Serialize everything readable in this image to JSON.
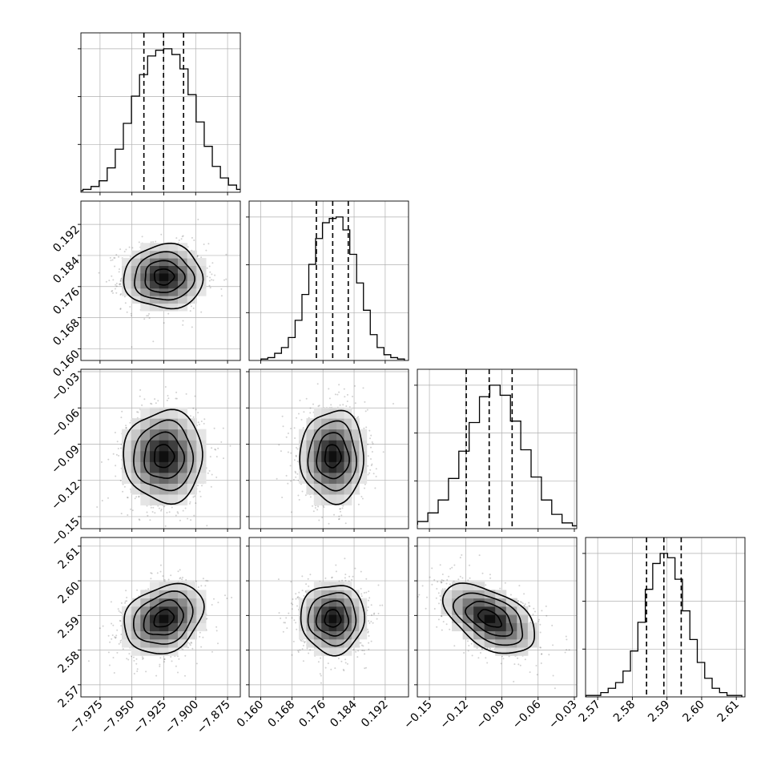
{
  "chart_data": {
    "type": "corner",
    "grid": true,
    "parameters": [
      {
        "range": [
          -7.99,
          -7.865
        ],
        "ticks": [
          "-7.975",
          "-7.950",
          "-7.925",
          "-7.900",
          "-7.875"
        ],
        "tick_values": [
          -7.975,
          -7.95,
          -7.925,
          -7.9,
          -7.875
        ],
        "quantiles": [
          -7.9406,
          -7.9252,
          -7.9095
        ],
        "mean": -7.925,
        "std": 0.0155,
        "hist_counts": [
          1,
          2,
          4,
          8,
          17,
          30,
          48,
          67,
          82,
          95,
          99,
          100,
          96,
          86,
          68,
          49,
          32,
          18,
          10,
          5,
          2,
          1
        ]
      },
      {
        "range": [
          0.157,
          0.198
        ],
        "ticks": [
          "0.160",
          "0.168",
          "0.176",
          "0.184",
          "0.192"
        ],
        "tick_values": [
          0.16,
          0.168,
          0.176,
          0.184,
          0.192
        ],
        "quantiles": [
          0.1743,
          0.1785,
          0.1825
        ],
        "mean": 0.1785,
        "std": 0.0041,
        "hist_counts": [
          1,
          2,
          5,
          9,
          16,
          28,
          46,
          67,
          85,
          96,
          99,
          100,
          91,
          74,
          54,
          35,
          18,
          9,
          4,
          2,
          1
        ]
      },
      {
        "range": [
          -0.16,
          -0.028
        ],
        "ticks": [
          "-0.15",
          "-0.12",
          "-0.09",
          "-0.06",
          "-0.03"
        ],
        "tick_values": [
          -0.15,
          -0.12,
          -0.09,
          -0.06,
          -0.03
        ],
        "quantiles": [
          -0.1195,
          -0.1005,
          -0.0815
        ],
        "mean": -0.1,
        "std": 0.019,
        "hist_counts": [
          1,
          1,
          3,
          5,
          11,
          20,
          35,
          54,
          74,
          92,
          100,
          93,
          75,
          55,
          36,
          20,
          10,
          4,
          2,
          1
        ]
      },
      {
        "range": [
          2.5665,
          2.6125
        ],
        "ticks": [
          "2.57",
          "2.58",
          "2.59",
          "2.60",
          "2.61"
        ],
        "tick_values": [
          2.57,
          2.58,
          2.59,
          2.6,
          2.61
        ],
        "quantiles": [
          2.5841,
          2.5891,
          2.5941
        ],
        "mean": 2.5891,
        "std": 0.005,
        "hist_counts": [
          1,
          1,
          3,
          6,
          10,
          18,
          32,
          52,
          75,
          93,
          100,
          97,
          82,
          60,
          40,
          24,
          13,
          6,
          3,
          1,
          1
        ]
      }
    ],
    "correlations": [
      {
        "pair": [
          1,
          0
        ],
        "rho": 0.0
      },
      {
        "pair": [
          2,
          0
        ],
        "rho": 0.0
      },
      {
        "pair": [
          2,
          1
        ],
        "rho": 0.0
      },
      {
        "pair": [
          3,
          0
        ],
        "rho": 0.25
      },
      {
        "pair": [
          3,
          1
        ],
        "rho": 0.0
      },
      {
        "pair": [
          3,
          2
        ],
        "rho": -0.5
      }
    ]
  }
}
